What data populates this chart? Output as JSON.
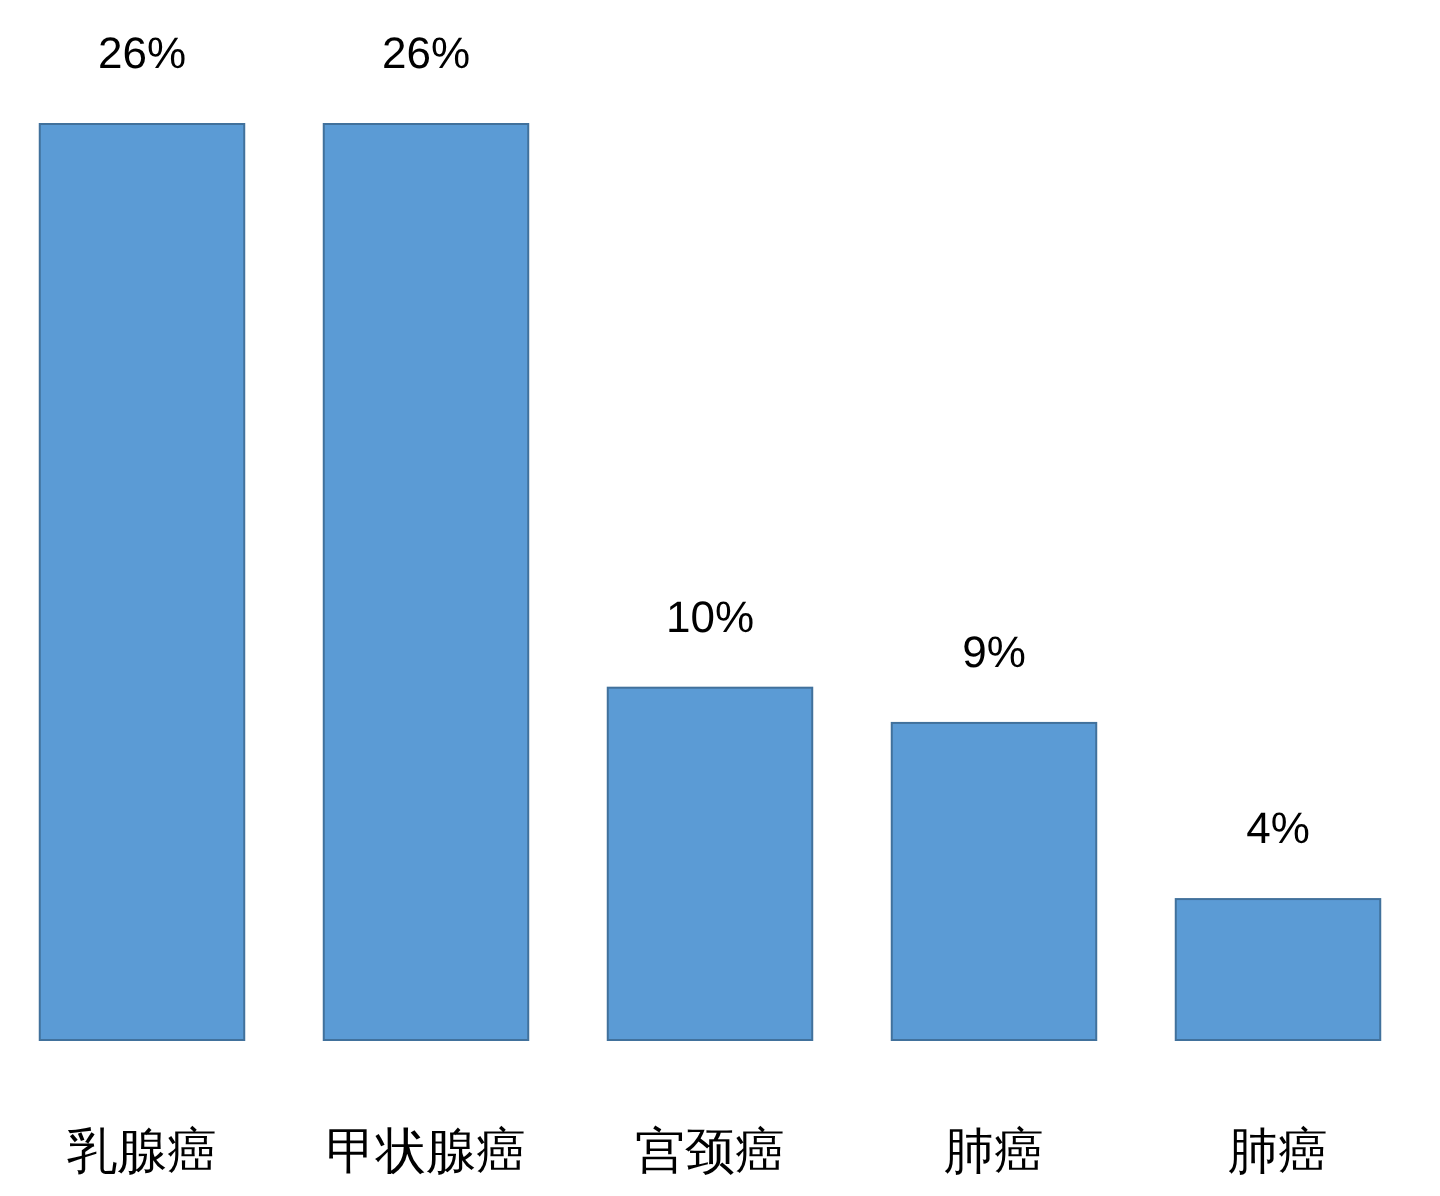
{
  "chart_data": {
    "type": "bar",
    "categories": [
      "乳腺癌",
      "甲状腺癌",
      "宫颈癌",
      "肺癌",
      "肺癌"
    ],
    "values": [
      26,
      26,
      10,
      9,
      4
    ],
    "value_labels": [
      "26%",
      "26%",
      "10%",
      "9%",
      "4%"
    ],
    "color": "#5b9bd5"
  }
}
